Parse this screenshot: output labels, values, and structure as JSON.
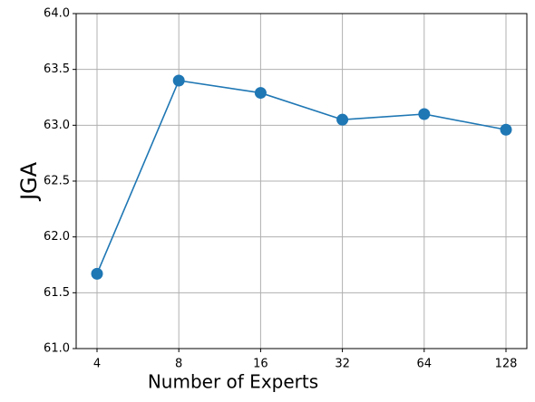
{
  "chart_data": {
    "type": "line",
    "x_label": "Number of Experts",
    "y_label": "JGA",
    "categories": [
      "4",
      "8",
      "16",
      "32",
      "64",
      "128"
    ],
    "series": [
      {
        "name": "JGA",
        "color": "#1f77b4",
        "values": [
          61.67,
          63.4,
          63.29,
          63.05,
          63.1,
          62.96
        ]
      }
    ],
    "ylim": [
      61.0,
      64.0
    ],
    "yticks": [
      {
        "value": 61,
        "label": "61.0"
      },
      61.5,
      {
        "value": 62,
        "label": "62.0"
      },
      62.5,
      {
        "value": 63,
        "label": "63.0"
      },
      63.5,
      {
        "value": 64,
        "label": "64.0"
      }
    ],
    "grid": true
  }
}
